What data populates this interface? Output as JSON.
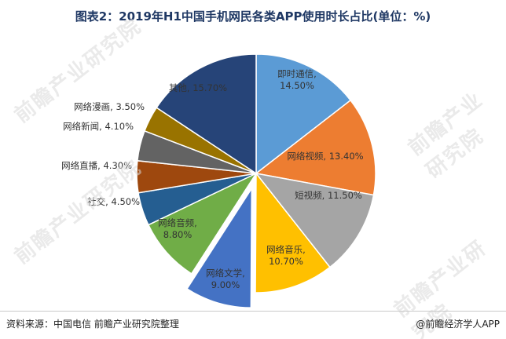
{
  "title": "图表2：2019年H1中国手机网民各类APP使用时长占比(单位：%)",
  "source": "资料来源：中国电信  前瞻产业研究院整理",
  "brand": "@前瞻经济学人APP",
  "watermark": "前瞻产业研究院",
  "chart_data": {
    "type": "pie",
    "unit": "%",
    "slices": [
      {
        "label": "即时通信",
        "value": 14.5,
        "text": "即时通信,\n14.50%",
        "color": "#5b9bd5"
      },
      {
        "label": "网络视频",
        "value": 13.4,
        "text": "网络视频, 13.40%",
        "color": "#ed7d31"
      },
      {
        "label": "短视频",
        "value": 11.5,
        "text": "短视频, 11.50%",
        "color": "#a5a5a5"
      },
      {
        "label": "网络音乐",
        "value": 10.7,
        "text": "网络音乐,\n10.70%",
        "color": "#ffc000"
      },
      {
        "label": "网络文学",
        "value": 9.0,
        "text": "网络文学,\n9.00%",
        "color": "#4472c4",
        "exploded": true
      },
      {
        "label": "网络音频",
        "value": 8.8,
        "text": "网络音频,\n8.80%",
        "color": "#70ad47"
      },
      {
        "label": "社交",
        "value": 4.5,
        "text": "社交, 4.50%",
        "color": "#255e91"
      },
      {
        "label": "网络直播",
        "value": 4.3,
        "text": "网络直播, 4.30%",
        "color": "#9e480e"
      },
      {
        "label": "网络新闻",
        "value": 4.1,
        "text": "网络新闻, 4.10%",
        "color": "#636363"
      },
      {
        "label": "网络漫画",
        "value": 3.5,
        "text": "网络漫画, 3.50%",
        "color": "#997300"
      },
      {
        "label": "其他",
        "value": 15.7,
        "text": "其他, 15.70%",
        "color": "#264478"
      }
    ]
  }
}
